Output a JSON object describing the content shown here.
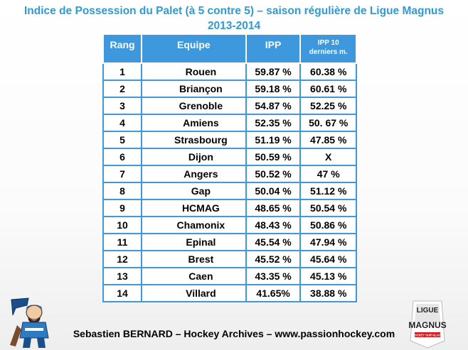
{
  "title": {
    "line1": "Indice de Possession  du Palet (à 5 contre 5) – saison régulière de Ligue Magnus",
    "line2": "2013-2014"
  },
  "headers": {
    "rang": "Rang",
    "equipe": "Equipe",
    "ipp": "IPP",
    "ipp10_line1": "IPP 10",
    "ipp10_line2": "derniers m."
  },
  "chart_data": {
    "type": "table",
    "columns": [
      "Rang",
      "Equipe",
      "IPP",
      "IPP 10 derniers m."
    ],
    "rows": [
      {
        "rang": "1",
        "team": "Rouen",
        "ipp": "59.87 %",
        "ipp10": "60.38 %"
      },
      {
        "rang": "2",
        "team": "Briançon",
        "ipp": "59.18 %",
        "ipp10": "60.61 %"
      },
      {
        "rang": "3",
        "team": "Grenoble",
        "ipp": "54.87 %",
        "ipp10": "52.25 %"
      },
      {
        "rang": "4",
        "team": "Amiens",
        "ipp": "52.35 %",
        "ipp10": "50. 67 %"
      },
      {
        "rang": "5",
        "team": "Strasbourg",
        "ipp": "51.19 %",
        "ipp10": "47.85 %"
      },
      {
        "rang": "6",
        "team": "Dijon",
        "ipp": "50.59 %",
        "ipp10": "X"
      },
      {
        "rang": "7",
        "team": "Angers",
        "ipp": "50.52 %",
        "ipp10": "47 %"
      },
      {
        "rang": "8",
        "team": "Gap",
        "ipp": "50.04 %",
        "ipp10": "51.12 %"
      },
      {
        "rang": "9",
        "team": "HCMAG",
        "ipp": "48.65 %",
        "ipp10": "50.54 %"
      },
      {
        "rang": "10",
        "team": "Chamonix",
        "ipp": "48.43 %",
        "ipp10": "50.86 %"
      },
      {
        "rang": "11",
        "team": "Epinal",
        "ipp": "45.54 %",
        "ipp10": "47.94 %"
      },
      {
        "rang": "12",
        "team": "Brest",
        "ipp": "45.52 %",
        "ipp10": "45.64 %"
      },
      {
        "rang": "13",
        "team": "Caen",
        "ipp": "43.35 %",
        "ipp10": "45.13 %"
      },
      {
        "rang": "14",
        "team": "Villard",
        "ipp": "41.65%",
        "ipp10": "38.88 %"
      }
    ]
  },
  "footer": "Sebastien BERNARD – Hockey Archives – www.passionhockey.com",
  "logos": {
    "left_icon": "hockey-player-logo-icon",
    "right_icon": "ligue-magnus-logo-icon",
    "right_line1": "LIGUE",
    "right_line2": "MAGNUS",
    "right_line3": "HOCKEY SUR GLACE"
  },
  "colors": {
    "title": "#2e9bd6",
    "header_bg": "#3d98dd",
    "grid": "#3d98dd"
  }
}
